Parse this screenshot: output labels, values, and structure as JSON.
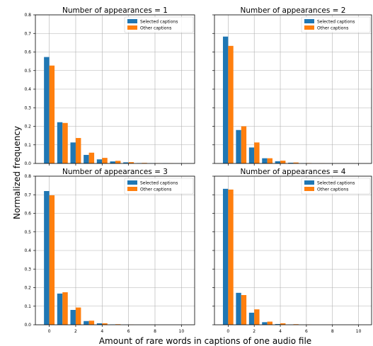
{
  "figure": {
    "xlabel": "Amount of rare words in captions of one audio file",
    "ylabel": "Normalized frequency"
  },
  "colors": {
    "selected": "#1f77b4",
    "other": "#ff7f0e"
  },
  "chart_data": [
    {
      "type": "bar",
      "title": "Number of appearances = 1",
      "categories": [
        0,
        1,
        2,
        3,
        4,
        5,
        6,
        7,
        8,
        9,
        10
      ],
      "xticks": [
        0,
        2,
        4,
        6,
        8,
        10
      ],
      "yticks": [
        0.0,
        0.1,
        0.2,
        0.3,
        0.4,
        0.5,
        0.6,
        0.7,
        0.8
      ],
      "ylim": [
        0,
        0.8
      ],
      "show_x_tick_labels": false,
      "show_y_tick_labels": true,
      "legend": "top-right",
      "grid": true,
      "series": [
        {
          "name": "Selected captions",
          "values": [
            0.573,
            0.222,
            0.113,
            0.046,
            0.022,
            0.011,
            0.006,
            0.002,
            0.001,
            0.001,
            0.0
          ]
        },
        {
          "name": "Other captions",
          "values": [
            0.527,
            0.218,
            0.137,
            0.058,
            0.03,
            0.014,
            0.007,
            0.003,
            0.001,
            0.001,
            0.0
          ]
        }
      ]
    },
    {
      "type": "bar",
      "title": "Number of appearances = 2",
      "categories": [
        0,
        1,
        2,
        3,
        4,
        5,
        6,
        7,
        8,
        9,
        10
      ],
      "xticks": [
        0,
        2,
        4,
        6,
        8,
        10
      ],
      "yticks": [
        0.0,
        0.1,
        0.2,
        0.3,
        0.4,
        0.5,
        0.6,
        0.7,
        0.8
      ],
      "ylim": [
        0,
        0.8
      ],
      "show_x_tick_labels": false,
      "show_y_tick_labels": false,
      "legend": "top-right",
      "grid": true,
      "series": [
        {
          "name": "Selected captions",
          "values": [
            0.683,
            0.18,
            0.086,
            0.028,
            0.012,
            0.004,
            0.001,
            0.0,
            0.0,
            0.0,
            0.0
          ]
        },
        {
          "name": "Other captions",
          "values": [
            0.633,
            0.2,
            0.113,
            0.028,
            0.015,
            0.005,
            0.002,
            0.001,
            0.0,
            0.0,
            0.0
          ]
        }
      ]
    },
    {
      "type": "bar",
      "title": "Number of appearances = 3",
      "categories": [
        0,
        1,
        2,
        3,
        4,
        5,
        6,
        7,
        8,
        9,
        10
      ],
      "xticks": [
        0,
        2,
        4,
        6,
        8,
        10
      ],
      "yticks": [
        0.0,
        0.1,
        0.2,
        0.3,
        0.4,
        0.5,
        0.6,
        0.7,
        0.8
      ],
      "ylim": [
        0,
        0.8
      ],
      "show_x_tick_labels": true,
      "show_y_tick_labels": true,
      "legend": "top-right",
      "grid": true,
      "series": [
        {
          "name": "Selected captions",
          "values": [
            0.72,
            0.168,
            0.08,
            0.02,
            0.008,
            0.002,
            0.001,
            0.0,
            0.0,
            0.0,
            0.0
          ]
        },
        {
          "name": "Other captions",
          "values": [
            0.697,
            0.175,
            0.093,
            0.022,
            0.008,
            0.003,
            0.001,
            0.0,
            0.0,
            0.0,
            0.0
          ]
        }
      ]
    },
    {
      "type": "bar",
      "title": "Number of appearances = 4",
      "categories": [
        0,
        1,
        2,
        3,
        4,
        5,
        6,
        7,
        8,
        9,
        10
      ],
      "xticks": [
        0,
        2,
        4,
        6,
        8,
        10
      ],
      "yticks": [
        0.0,
        0.1,
        0.2,
        0.3,
        0.4,
        0.5,
        0.6,
        0.7,
        0.8
      ],
      "ylim": [
        0,
        0.8
      ],
      "show_x_tick_labels": true,
      "show_y_tick_labels": false,
      "legend": "top-right",
      "grid": true,
      "series": [
        {
          "name": "Selected captions",
          "values": [
            0.732,
            0.172,
            0.065,
            0.014,
            0.004,
            0.001,
            0.0,
            0.0,
            0.0,
            0.0,
            0.0
          ]
        },
        {
          "name": "Other captions",
          "values": [
            0.728,
            0.16,
            0.083,
            0.017,
            0.008,
            0.003,
            0.001,
            0.0,
            0.0,
            0.0,
            0.0
          ]
        }
      ]
    }
  ]
}
